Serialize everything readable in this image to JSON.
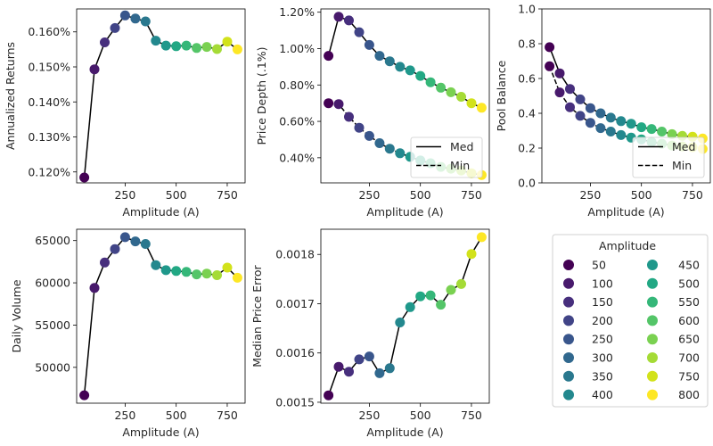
{
  "chart_data": [
    {
      "id": "returns",
      "type": "line",
      "title": "",
      "xlabel": "Amplitude (A)",
      "ylabel": "Annualized Returns",
      "x": [
        50,
        100,
        150,
        200,
        250,
        300,
        350,
        400,
        450,
        500,
        550,
        600,
        650,
        700,
        750,
        800
      ],
      "xlim": [
        12.5,
        837.5
      ],
      "xticks": [
        250,
        500,
        750
      ],
      "ylim": [
        0.11688,
        0.16656
      ],
      "yticks": [
        0.12,
        0.13,
        0.14,
        0.15,
        0.16
      ],
      "ytick_labels": [
        "0.120%",
        "0.130%",
        "0.140%",
        "0.150%",
        "0.160%"
      ],
      "series": [
        {
          "name": "Returns",
          "style": "solid",
          "values": [
            0.1184,
            0.1493,
            0.157,
            0.1611,
            0.1647,
            0.1638,
            0.163,
            0.1575,
            0.1561,
            0.1559,
            0.1561,
            0.1554,
            0.1557,
            0.1551,
            0.1572,
            0.155
          ]
        }
      ],
      "legend": null
    },
    {
      "id": "depth",
      "type": "line",
      "title": "",
      "xlabel": "Amplitude (A)",
      "ylabel": "Price Depth (.1%)",
      "x": [
        50,
        100,
        150,
        200,
        250,
        300,
        350,
        400,
        450,
        500,
        550,
        600,
        650,
        700,
        750,
        800
      ],
      "xlim": [
        12.5,
        837.5
      ],
      "xticks": [
        250,
        500,
        750
      ],
      "ylim": [
        0.262,
        1.218
      ],
      "yticks": [
        0.4,
        0.6,
        0.8,
        1.0,
        1.2
      ],
      "ytick_labels": [
        "0.40%",
        "0.60%",
        "0.80%",
        "1.00%",
        "1.20%"
      ],
      "series": [
        {
          "name": "Med",
          "style": "solid",
          "values": [
            0.96,
            1.175,
            1.155,
            1.09,
            1.02,
            0.96,
            0.93,
            0.9,
            0.88,
            0.85,
            0.815,
            0.785,
            0.76,
            0.735,
            0.7,
            0.675
          ]
        },
        {
          "name": "Min",
          "style": "dashed",
          "values": [
            0.7,
            0.695,
            0.625,
            0.565,
            0.52,
            0.48,
            0.45,
            0.425,
            0.405,
            0.385,
            0.37,
            0.35,
            0.34,
            0.33,
            0.315,
            0.305
          ]
        }
      ],
      "legend": {
        "entries": [
          "Med",
          "Min"
        ],
        "placement": "lower-right"
      }
    },
    {
      "id": "pool",
      "type": "line",
      "title": "",
      "xlabel": "Amplitude (A)",
      "ylabel": "Pool Balance",
      "x": [
        50,
        100,
        150,
        200,
        250,
        300,
        350,
        400,
        450,
        500,
        550,
        600,
        650,
        700,
        750,
        800
      ],
      "xlim": [
        12.5,
        837.5
      ],
      "xticks": [
        250,
        500,
        750
      ],
      "ylim": [
        0.0,
        1.0
      ],
      "yticks": [
        0.0,
        0.2,
        0.4,
        0.6,
        0.8,
        1.0
      ],
      "ytick_labels": [
        "0.0",
        "0.2",
        "0.4",
        "0.6",
        "0.8",
        "1.0"
      ],
      "series": [
        {
          "name": "Med",
          "style": "solid",
          "values": [
            0.78,
            0.63,
            0.54,
            0.48,
            0.43,
            0.4,
            0.375,
            0.355,
            0.34,
            0.32,
            0.31,
            0.295,
            0.28,
            0.27,
            0.265,
            0.255
          ]
        },
        {
          "name": "Min",
          "style": "dashed",
          "values": [
            0.67,
            0.52,
            0.435,
            0.385,
            0.345,
            0.315,
            0.295,
            0.275,
            0.26,
            0.25,
            0.235,
            0.225,
            0.215,
            0.21,
            0.205,
            0.195
          ]
        }
      ],
      "legend": {
        "entries": [
          "Med",
          "Min"
        ],
        "placement": "lower-right"
      }
    },
    {
      "id": "volume",
      "type": "line",
      "title": "",
      "xlabel": "Amplitude (A)",
      "ylabel": "Daily Volume",
      "x": [
        50,
        100,
        150,
        200,
        250,
        300,
        350,
        400,
        450,
        500,
        550,
        600,
        650,
        700,
        750,
        800
      ],
      "xlim": [
        12.5,
        837.5
      ],
      "xticks": [
        250,
        500,
        750
      ],
      "ylim": [
        45760,
        66340
      ],
      "yticks": [
        50000,
        55000,
        60000,
        65000
      ],
      "ytick_labels": [
        "50000",
        "55000",
        "60000",
        "65000"
      ],
      "series": [
        {
          "name": "Volume",
          "style": "solid",
          "values": [
            46700,
            59400,
            62400,
            64000,
            65400,
            64900,
            64600,
            62100,
            61500,
            61400,
            61300,
            61000,
            61100,
            60900,
            61800,
            60600
          ]
        }
      ],
      "legend": null
    },
    {
      "id": "error",
      "type": "line",
      "title": "",
      "xlabel": "Amplitude (A)",
      "ylabel": "Median Price Error",
      "x": [
        50,
        100,
        150,
        200,
        250,
        300,
        350,
        400,
        450,
        500,
        550,
        600,
        650,
        700,
        750,
        800
      ],
      "xlim": [
        12.5,
        837.5
      ],
      "xticks": [
        250,
        500,
        750
      ],
      "ylim": [
        0.0014981,
        0.0018511
      ],
      "yticks": [
        0.0015,
        0.0016,
        0.0017,
        0.0018
      ],
      "ytick_labels": [
        "0.0015",
        "0.0016",
        "0.0017",
        "0.0018"
      ],
      "series": [
        {
          "name": "Error",
          "style": "solid",
          "values": [
            0.001514,
            0.001572,
            0.001562,
            0.001587,
            0.001593,
            0.001559,
            0.001569,
            0.001662,
            0.001693,
            0.001715,
            0.001717,
            0.001698,
            0.001728,
            0.00174,
            0.001801,
            0.001835
          ]
        }
      ],
      "legend": null
    }
  ],
  "amplitude_legend": {
    "title": "Amplitude",
    "entries": [
      {
        "label": "50",
        "color": "#440154"
      },
      {
        "label": "100",
        "color": "#481a6c"
      },
      {
        "label": "150",
        "color": "#472f7d"
      },
      {
        "label": "200",
        "color": "#414487"
      },
      {
        "label": "250",
        "color": "#39568c"
      },
      {
        "label": "300",
        "color": "#31688e"
      },
      {
        "label": "350",
        "color": "#2a788e"
      },
      {
        "label": "400",
        "color": "#23888e"
      },
      {
        "label": "450",
        "color": "#1f988b"
      },
      {
        "label": "500",
        "color": "#22a884"
      },
      {
        "label": "550",
        "color": "#35b779"
      },
      {
        "label": "600",
        "color": "#54c568"
      },
      {
        "label": "650",
        "color": "#7ad151"
      },
      {
        "label": "700",
        "color": "#a5db36"
      },
      {
        "label": "750",
        "color": "#d2e21b"
      },
      {
        "label": "800",
        "color": "#fde725"
      }
    ]
  }
}
